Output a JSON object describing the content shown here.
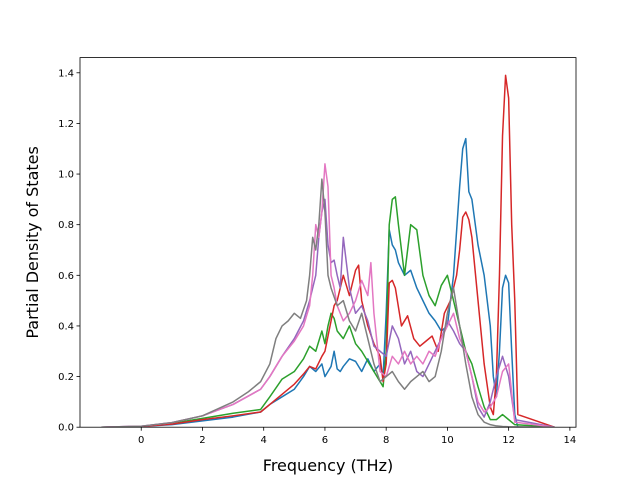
{
  "chart_data": {
    "type": "line",
    "xlabel": "Frequency (THz)",
    "ylabel": "Partial Density of States",
    "xlim": [
      -2.0,
      14.2
    ],
    "ylim": [
      0.0,
      1.46
    ],
    "xticks": [
      0,
      2,
      4,
      6,
      8,
      10,
      12,
      14
    ],
    "yticks": [
      0.0,
      0.2,
      0.4,
      0.6,
      0.8,
      1.0,
      1.2,
      1.4
    ],
    "ytick_labels": [
      "0.0",
      "0.2",
      "0.4",
      "0.6",
      "0.8",
      "1.0",
      "1.2",
      "1.4"
    ],
    "grid": false,
    "series": [
      {
        "color": "#1f77b4",
        "x": [
          -1.3,
          0,
          1,
          2,
          3,
          3.9,
          4.2,
          4.6,
          5.0,
          5.3,
          5.5,
          5.7,
          5.9,
          6.0,
          6.1,
          6.2,
          6.3,
          6.4,
          6.5,
          6.6,
          6.8,
          7.0,
          7.2,
          7.4,
          7.6,
          7.8,
          7.9,
          8.0,
          8.1,
          8.2,
          8.3,
          8.4,
          8.6,
          8.8,
          9.0,
          9.2,
          9.4,
          9.6,
          9.8,
          10.0,
          10.2,
          10.4,
          10.5,
          10.6,
          10.7,
          10.8,
          11.0,
          11.2,
          11.4,
          11.5,
          11.6,
          11.7,
          11.8,
          11.9,
          12.0,
          12.1,
          12.2,
          12.3,
          13.5
        ],
        "y": [
          0,
          0.003,
          0.01,
          0.025,
          0.04,
          0.06,
          0.09,
          0.12,
          0.15,
          0.2,
          0.24,
          0.22,
          0.25,
          0.2,
          0.22,
          0.24,
          0.3,
          0.23,
          0.22,
          0.24,
          0.27,
          0.26,
          0.22,
          0.27,
          0.22,
          0.25,
          0.2,
          0.45,
          0.78,
          0.72,
          0.7,
          0.65,
          0.6,
          0.62,
          0.55,
          0.5,
          0.45,
          0.42,
          0.38,
          0.4,
          0.6,
          0.95,
          1.1,
          1.14,
          0.93,
          0.9,
          0.72,
          0.6,
          0.4,
          0.2,
          0.12,
          0.3,
          0.55,
          0.6,
          0.57,
          0.3,
          0.05,
          0,
          0
        ]
      },
      {
        "color": "#2ca02c",
        "x": [
          -1.3,
          0,
          1,
          2,
          3,
          3.9,
          4.2,
          4.6,
          5.0,
          5.3,
          5.5,
          5.7,
          5.9,
          6.0,
          6.1,
          6.2,
          6.3,
          6.4,
          6.6,
          6.8,
          7.0,
          7.2,
          7.4,
          7.6,
          7.8,
          7.9,
          8.0,
          8.1,
          8.2,
          8.3,
          8.4,
          8.6,
          8.8,
          9.0,
          9.2,
          9.4,
          9.6,
          9.8,
          10.0,
          10.2,
          10.4,
          10.6,
          10.8,
          11.0,
          11.2,
          11.4,
          11.6,
          11.8,
          12.0,
          12.2,
          13.5
        ],
        "y": [
          0,
          0.003,
          0.015,
          0.035,
          0.055,
          0.07,
          0.12,
          0.19,
          0.22,
          0.27,
          0.32,
          0.3,
          0.38,
          0.33,
          0.4,
          0.45,
          0.43,
          0.38,
          0.35,
          0.4,
          0.33,
          0.3,
          0.26,
          0.22,
          0.18,
          0.16,
          0.3,
          0.8,
          0.9,
          0.91,
          0.8,
          0.6,
          0.8,
          0.78,
          0.6,
          0.52,
          0.48,
          0.56,
          0.6,
          0.5,
          0.4,
          0.3,
          0.25,
          0.16,
          0.08,
          0.03,
          0.03,
          0.05,
          0.03,
          0.01,
          0
        ]
      },
      {
        "color": "#d62728",
        "x": [
          -1.3,
          0,
          1,
          2,
          3,
          3.9,
          4.2,
          4.6,
          5.0,
          5.3,
          5.5,
          5.7,
          5.9,
          6.0,
          6.1,
          6.2,
          6.3,
          6.4,
          6.5,
          6.6,
          6.8,
          7.0,
          7.1,
          7.2,
          7.4,
          7.6,
          7.8,
          7.9,
          8.0,
          8.1,
          8.2,
          8.3,
          8.5,
          8.7,
          8.9,
          9.1,
          9.3,
          9.5,
          9.7,
          9.9,
          10.1,
          10.3,
          10.4,
          10.5,
          10.6,
          10.7,
          10.8,
          11.0,
          11.2,
          11.4,
          11.5,
          11.6,
          11.7,
          11.8,
          11.9,
          12.0,
          12.1,
          12.2,
          12.3,
          13.5
        ],
        "y": [
          0,
          0.003,
          0.012,
          0.03,
          0.045,
          0.06,
          0.09,
          0.13,
          0.17,
          0.21,
          0.24,
          0.23,
          0.28,
          0.3,
          0.36,
          0.42,
          0.48,
          0.5,
          0.55,
          0.6,
          0.52,
          0.62,
          0.64,
          0.5,
          0.4,
          0.33,
          0.28,
          0.18,
          0.25,
          0.57,
          0.58,
          0.55,
          0.4,
          0.44,
          0.35,
          0.32,
          0.34,
          0.36,
          0.3,
          0.45,
          0.5,
          0.6,
          0.7,
          0.83,
          0.85,
          0.82,
          0.75,
          0.5,
          0.25,
          0.08,
          0.05,
          0.2,
          0.6,
          1.15,
          1.39,
          1.3,
          0.8,
          0.5,
          0.05,
          0
        ]
      },
      {
        "color": "#9467bd",
        "x": [
          -1.3,
          0,
          1,
          2,
          3,
          3.9,
          4.2,
          4.6,
          5.0,
          5.3,
          5.5,
          5.7,
          5.8,
          5.9,
          6.0,
          6.1,
          6.2,
          6.3,
          6.4,
          6.5,
          6.6,
          6.8,
          7.0,
          7.2,
          7.4,
          7.6,
          7.8,
          8.0,
          8.2,
          8.4,
          8.6,
          8.8,
          9.0,
          9.2,
          9.4,
          9.6,
          9.8,
          10.0,
          10.2,
          10.4,
          10.6,
          10.8,
          11.0,
          11.2,
          11.4,
          11.6,
          11.8,
          12.0,
          12.2,
          13.5
        ],
        "y": [
          0,
          0.004,
          0.018,
          0.045,
          0.09,
          0.15,
          0.2,
          0.28,
          0.35,
          0.42,
          0.5,
          0.6,
          0.75,
          0.85,
          0.9,
          0.72,
          0.65,
          0.66,
          0.6,
          0.55,
          0.75,
          0.55,
          0.45,
          0.48,
          0.42,
          0.32,
          0.3,
          0.28,
          0.4,
          0.35,
          0.25,
          0.3,
          0.22,
          0.2,
          0.25,
          0.3,
          0.35,
          0.42,
          0.38,
          0.33,
          0.3,
          0.2,
          0.08,
          0.04,
          0.1,
          0.2,
          0.28,
          0.2,
          0.03,
          0
        ]
      },
      {
        "color": "#e377c2",
        "x": [
          -1.3,
          0,
          1,
          2,
          3,
          3.9,
          4.2,
          4.6,
          5.0,
          5.3,
          5.5,
          5.6,
          5.7,
          5.8,
          5.9,
          6.0,
          6.1,
          6.2,
          6.3,
          6.4,
          6.6,
          6.8,
          7.0,
          7.2,
          7.4,
          7.5,
          7.6,
          7.8,
          8.0,
          8.2,
          8.4,
          8.6,
          8.8,
          9.0,
          9.2,
          9.4,
          9.6,
          9.8,
          10.0,
          10.2,
          10.4,
          10.6,
          10.8,
          11.0,
          11.2,
          11.4,
          11.6,
          11.8,
          12.0,
          12.2,
          13.5
        ],
        "y": [
          0,
          0.004,
          0.018,
          0.045,
          0.09,
          0.15,
          0.2,
          0.28,
          0.34,
          0.4,
          0.48,
          0.6,
          0.8,
          0.75,
          0.85,
          1.04,
          0.95,
          0.6,
          0.55,
          0.48,
          0.42,
          0.45,
          0.5,
          0.58,
          0.52,
          0.65,
          0.45,
          0.22,
          0.2,
          0.28,
          0.25,
          0.3,
          0.25,
          0.28,
          0.25,
          0.3,
          0.28,
          0.35,
          0.4,
          0.45,
          0.35,
          0.3,
          0.2,
          0.1,
          0.06,
          0.08,
          0.12,
          0.22,
          0.25,
          0.02,
          0
        ]
      },
      {
        "color": "#7f7f7f",
        "x": [
          -1.3,
          0,
          1,
          2,
          3,
          3.5,
          3.9,
          4.2,
          4.4,
          4.6,
          4.8,
          5.0,
          5.2,
          5.4,
          5.5,
          5.6,
          5.7,
          5.8,
          5.9,
          6.0,
          6.1,
          6.2,
          6.4,
          6.6,
          6.8,
          7.0,
          7.2,
          7.4,
          7.6,
          7.8,
          8.0,
          8.2,
          8.4,
          8.6,
          8.8,
          9.0,
          9.2,
          9.4,
          9.6,
          9.8,
          10.0,
          10.2,
          10.4,
          10.6,
          10.8,
          11.0,
          11.2,
          11.4,
          11.6,
          11.8,
          12.0,
          13.5
        ],
        "y": [
          0,
          0.004,
          0.018,
          0.045,
          0.1,
          0.14,
          0.18,
          0.25,
          0.35,
          0.4,
          0.42,
          0.45,
          0.43,
          0.5,
          0.6,
          0.75,
          0.7,
          0.8,
          0.98,
          0.85,
          0.6,
          0.55,
          0.48,
          0.5,
          0.42,
          0.38,
          0.45,
          0.35,
          0.25,
          0.18,
          0.2,
          0.22,
          0.18,
          0.15,
          0.18,
          0.2,
          0.22,
          0.18,
          0.2,
          0.3,
          0.45,
          0.55,
          0.4,
          0.25,
          0.12,
          0.05,
          0.02,
          0.01,
          0.005,
          0.003,
          0.002,
          0
        ]
      }
    ]
  }
}
